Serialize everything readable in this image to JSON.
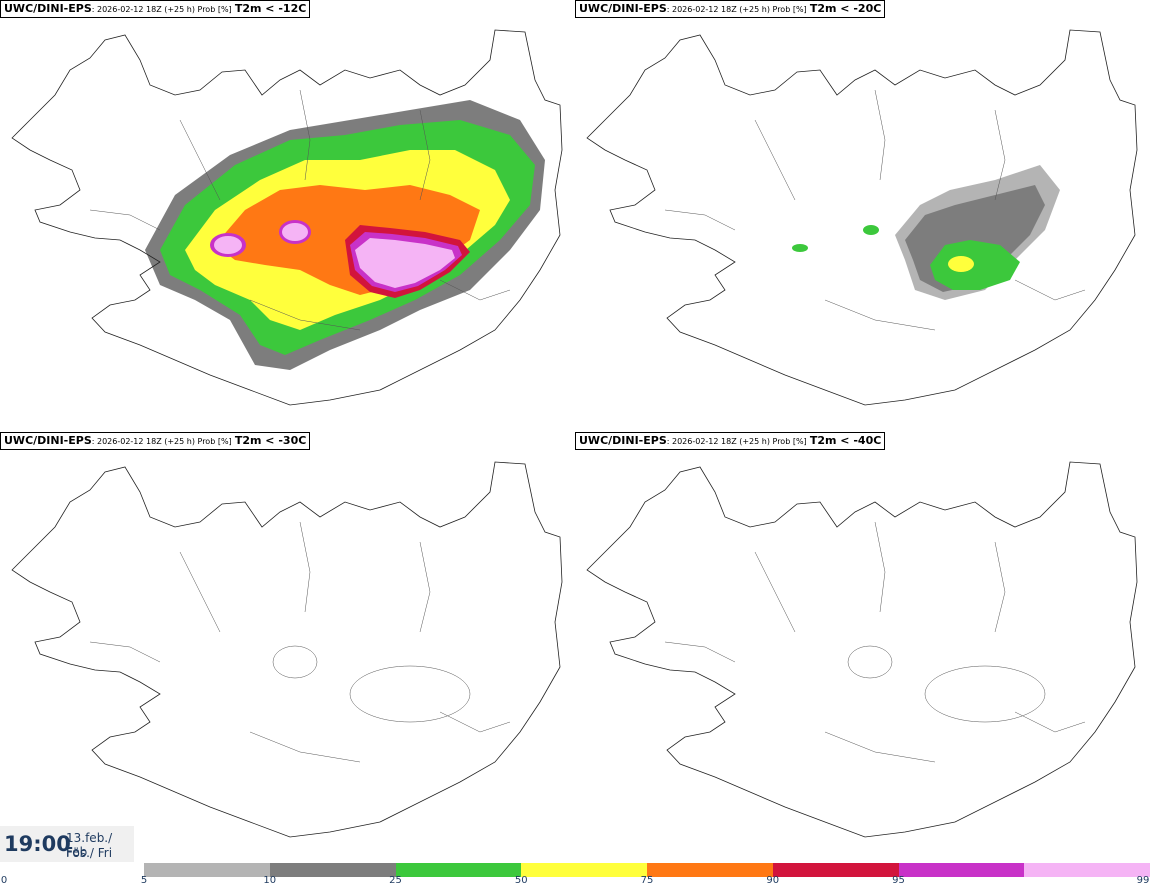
{
  "panels": [
    {
      "model": "UWC/DINI-EPS",
      "meta": ": 2026-02-12 18Z (+25 h) Prob [%]",
      "var": "T2m < -12C"
    },
    {
      "model": "UWC/DINI-EPS",
      "meta": ": 2026-02-12 18Z (+25 h) Prob [%]",
      "var": "T2m < -20C"
    },
    {
      "model": "UWC/DINI-EPS",
      "meta": ": 2026-02-12 18Z (+25 h) Prob [%]",
      "var": "T2m < -30C"
    },
    {
      "model": "UWC/DINI-EPS",
      "meta": ": 2026-02-12 18Z (+25 h) Prob [%]",
      "var": "T2m < -40C"
    }
  ],
  "time": {
    "hour": "19:00",
    "date": "13.feb./ Feb",
    "day": "Fös./ Fri"
  },
  "colorbar": {
    "labels": [
      "0",
      "5",
      "10",
      "25",
      "50",
      "75",
      "90",
      "95",
      "99"
    ],
    "colors": [
      "#b4b4b4",
      "#7d7d7d",
      "#3cc83c",
      "#ffff3c",
      "#ff7814",
      "#d2143c",
      "#c832c8",
      "#f5b4f5"
    ]
  }
}
